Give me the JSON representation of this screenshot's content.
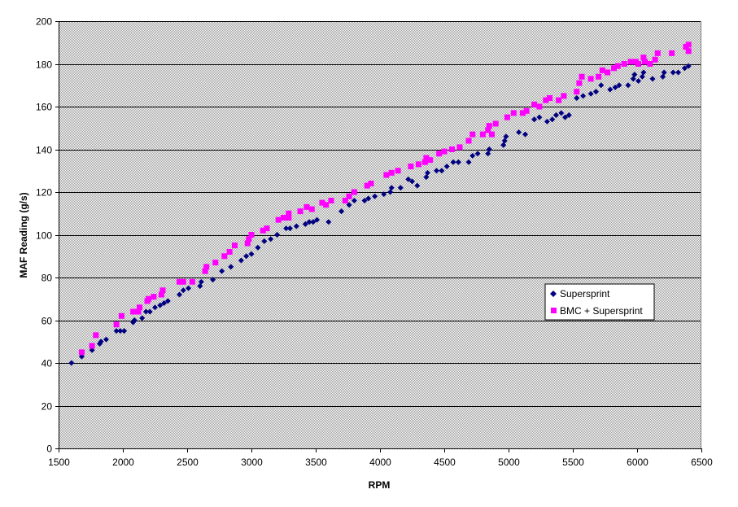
{
  "chart_data": {
    "type": "scatter",
    "xlabel": "RPM",
    "ylabel": "MAF Reading (g/s)",
    "xlim": [
      1500,
      6500
    ],
    "ylim": [
      0,
      200
    ],
    "x_ticks": [
      1500,
      2000,
      2500,
      3000,
      3500,
      4000,
      4500,
      5000,
      5500,
      6000,
      6500
    ],
    "y_ticks": [
      0,
      20,
      40,
      60,
      80,
      100,
      120,
      140,
      160,
      180,
      200
    ],
    "grid": true,
    "plot_background": "#c0c0c0",
    "legend_position": "right",
    "series": [
      {
        "name": "Supersprint",
        "marker": "diamond",
        "color": "#000080",
        "points": [
          [
            1600,
            40
          ],
          [
            1680,
            43
          ],
          [
            1760,
            46
          ],
          [
            1820,
            49
          ],
          [
            1830,
            50
          ],
          [
            1870,
            51
          ],
          [
            1950,
            55
          ],
          [
            1980,
            55
          ],
          [
            2010,
            55
          ],
          [
            2080,
            59
          ],
          [
            2090,
            60
          ],
          [
            2150,
            61
          ],
          [
            2180,
            64
          ],
          [
            2210,
            64
          ],
          [
            2250,
            66
          ],
          [
            2290,
            67
          ],
          [
            2320,
            68
          ],
          [
            2350,
            69
          ],
          [
            2440,
            72
          ],
          [
            2470,
            74
          ],
          [
            2510,
            75
          ],
          [
            2600,
            76
          ],
          [
            2610,
            78
          ],
          [
            2700,
            79
          ],
          [
            2770,
            83
          ],
          [
            2840,
            85
          ],
          [
            2920,
            88
          ],
          [
            2960,
            90
          ],
          [
            3000,
            91
          ],
          [
            3050,
            94
          ],
          [
            3100,
            97
          ],
          [
            3150,
            98
          ],
          [
            3200,
            100
          ],
          [
            3270,
            103
          ],
          [
            3300,
            103
          ],
          [
            3350,
            104
          ],
          [
            3420,
            105
          ],
          [
            3450,
            106
          ],
          [
            3480,
            106
          ],
          [
            3510,
            107
          ],
          [
            3600,
            106
          ],
          [
            3700,
            111
          ],
          [
            3760,
            114
          ],
          [
            3800,
            116
          ],
          [
            3880,
            116
          ],
          [
            3910,
            117
          ],
          [
            3960,
            118
          ],
          [
            4030,
            119
          ],
          [
            4080,
            120
          ],
          [
            4090,
            122
          ],
          [
            4160,
            122
          ],
          [
            4220,
            126
          ],
          [
            4250,
            125
          ],
          [
            4290,
            123
          ],
          [
            4360,
            127
          ],
          [
            4370,
            129
          ],
          [
            4440,
            130
          ],
          [
            4480,
            130
          ],
          [
            4520,
            132
          ],
          [
            4570,
            134
          ],
          [
            4610,
            134
          ],
          [
            4690,
            134
          ],
          [
            4720,
            137
          ],
          [
            4760,
            138
          ],
          [
            4840,
            138
          ],
          [
            4850,
            140
          ],
          [
            4960,
            142
          ],
          [
            4970,
            144
          ],
          [
            4980,
            146
          ],
          [
            5080,
            148
          ],
          [
            5130,
            147
          ],
          [
            5200,
            154
          ],
          [
            5240,
            155
          ],
          [
            5300,
            153
          ],
          [
            5340,
            154
          ],
          [
            5370,
            156
          ],
          [
            5410,
            157
          ],
          [
            5440,
            155
          ],
          [
            5470,
            156
          ],
          [
            5530,
            164
          ],
          [
            5580,
            165
          ],
          [
            5640,
            166
          ],
          [
            5680,
            167
          ],
          [
            5720,
            170
          ],
          [
            5790,
            168
          ],
          [
            5830,
            169
          ],
          [
            5860,
            170
          ],
          [
            5930,
            170
          ],
          [
            5970,
            173
          ],
          [
            5980,
            175
          ],
          [
            6010,
            172
          ],
          [
            6040,
            174
          ],
          [
            6050,
            176
          ],
          [
            6120,
            173
          ],
          [
            6200,
            174
          ],
          [
            6210,
            176
          ],
          [
            6280,
            176
          ],
          [
            6320,
            176
          ],
          [
            6370,
            178
          ],
          [
            6400,
            179
          ]
        ]
      },
      {
        "name": "BMC + Supersprint",
        "marker": "square",
        "color": "#ff00ff",
        "points": [
          [
            1680,
            45
          ],
          [
            1760,
            48
          ],
          [
            1790,
            53
          ],
          [
            1950,
            58
          ],
          [
            1990,
            62
          ],
          [
            2080,
            64
          ],
          [
            2120,
            64
          ],
          [
            2130,
            66
          ],
          [
            2190,
            69
          ],
          [
            2200,
            70
          ],
          [
            2240,
            71
          ],
          [
            2300,
            72
          ],
          [
            2310,
            74
          ],
          [
            2440,
            78
          ],
          [
            2470,
            78
          ],
          [
            2540,
            78
          ],
          [
            2640,
            83
          ],
          [
            2650,
            85
          ],
          [
            2720,
            87
          ],
          [
            2790,
            90
          ],
          [
            2830,
            92
          ],
          [
            2870,
            95
          ],
          [
            2970,
            96
          ],
          [
            2980,
            98
          ],
          [
            3000,
            100
          ],
          [
            3090,
            102
          ],
          [
            3120,
            103
          ],
          [
            3210,
            107
          ],
          [
            3250,
            108
          ],
          [
            3290,
            108
          ],
          [
            3290,
            110
          ],
          [
            3380,
            111
          ],
          [
            3430,
            113
          ],
          [
            3470,
            112
          ],
          [
            3550,
            115
          ],
          [
            3580,
            114
          ],
          [
            3620,
            116
          ],
          [
            3730,
            116
          ],
          [
            3760,
            118
          ],
          [
            3800,
            120
          ],
          [
            3900,
            123
          ],
          [
            3930,
            124
          ],
          [
            4050,
            128
          ],
          [
            4090,
            129
          ],
          [
            4140,
            130
          ],
          [
            4240,
            132
          ],
          [
            4300,
            133
          ],
          [
            4350,
            134
          ],
          [
            4360,
            136
          ],
          [
            4390,
            135
          ],
          [
            4460,
            138
          ],
          [
            4500,
            139
          ],
          [
            4560,
            140
          ],
          [
            4620,
            141
          ],
          [
            4690,
            144
          ],
          [
            4720,
            147
          ],
          [
            4800,
            147
          ],
          [
            4840,
            149
          ],
          [
            4850,
            151
          ],
          [
            4870,
            147
          ],
          [
            4900,
            152
          ],
          [
            4990,
            155
          ],
          [
            5040,
            157
          ],
          [
            5110,
            157
          ],
          [
            5140,
            158
          ],
          [
            5200,
            161
          ],
          [
            5240,
            160
          ],
          [
            5290,
            163
          ],
          [
            5320,
            164
          ],
          [
            5390,
            163
          ],
          [
            5430,
            165
          ],
          [
            5530,
            167
          ],
          [
            5550,
            171
          ],
          [
            5570,
            174
          ],
          [
            5640,
            173
          ],
          [
            5700,
            174
          ],
          [
            5730,
            177
          ],
          [
            5770,
            176
          ],
          [
            5820,
            178
          ],
          [
            5850,
            179
          ],
          [
            5900,
            180
          ],
          [
            5950,
            181
          ],
          [
            5990,
            181
          ],
          [
            6010,
            180
          ],
          [
            6050,
            183
          ],
          [
            6060,
            181
          ],
          [
            6100,
            180
          ],
          [
            6140,
            182
          ],
          [
            6160,
            185
          ],
          [
            6270,
            185
          ],
          [
            6380,
            188
          ],
          [
            6400,
            186
          ],
          [
            6400,
            189
          ]
        ]
      }
    ]
  }
}
